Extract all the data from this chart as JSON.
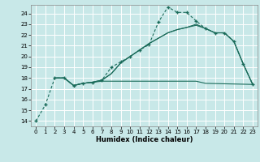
{
  "background_color": "#c8e8e8",
  "grid_color": "#ffffff",
  "line_color": "#1a6b5a",
  "xlabel": "Humidex (Indice chaleur)",
  "xlim": [
    -0.5,
    23.5
  ],
  "ylim": [
    13.5,
    24.8
  ],
  "yticks": [
    14,
    15,
    16,
    17,
    18,
    19,
    20,
    21,
    22,
    23,
    24
  ],
  "xticks": [
    0,
    1,
    2,
    3,
    4,
    5,
    6,
    7,
    8,
    9,
    10,
    11,
    12,
    13,
    14,
    15,
    16,
    17,
    18,
    19,
    20,
    21,
    22,
    23
  ],
  "line1_x": [
    0,
    1,
    2,
    3,
    4,
    5,
    6,
    7,
    8,
    9,
    10,
    11,
    12,
    13,
    14,
    15,
    16,
    17,
    18,
    19,
    20,
    21,
    22,
    23
  ],
  "line1_y": [
    14.0,
    15.5,
    18.0,
    18.0,
    17.3,
    17.5,
    17.6,
    17.8,
    19.0,
    19.5,
    20.0,
    20.6,
    21.1,
    23.2,
    24.6,
    24.1,
    24.1,
    23.3,
    22.6,
    22.2,
    22.2,
    21.4,
    19.3,
    17.4
  ],
  "line2_x": [
    2,
    3,
    4,
    5,
    6,
    7,
    8,
    9,
    10,
    11,
    12,
    13,
    14,
    15,
    16,
    17,
    18,
    19,
    20,
    21,
    22,
    23
  ],
  "line2_y": [
    18.0,
    18.0,
    17.3,
    17.5,
    17.6,
    17.8,
    18.4,
    19.4,
    20.0,
    20.6,
    21.2,
    21.7,
    22.2,
    22.5,
    22.7,
    23.0,
    22.6,
    22.2,
    22.2,
    21.4,
    19.3,
    17.4
  ],
  "line3_x": [
    2,
    3,
    4,
    5,
    6,
    7,
    8,
    9,
    10,
    11,
    12,
    13,
    14,
    15,
    16,
    17,
    18,
    19,
    20,
    21,
    22,
    23
  ],
  "line3_y": [
    18.0,
    18.0,
    17.3,
    17.5,
    17.6,
    17.8,
    18.4,
    19.4,
    20.0,
    20.6,
    21.2,
    21.7,
    22.2,
    22.5,
    22.7,
    22.9,
    22.6,
    22.2,
    22.2,
    21.4,
    19.3,
    17.4
  ],
  "line4_x": [
    2,
    3,
    4,
    5,
    6,
    7,
    8,
    9,
    10,
    11,
    12,
    13,
    14,
    15,
    16,
    17,
    18,
    23
  ],
  "line4_y": [
    18.0,
    18.0,
    17.3,
    17.5,
    17.6,
    17.7,
    17.7,
    17.7,
    17.7,
    17.7,
    17.7,
    17.7,
    17.7,
    17.7,
    17.7,
    17.7,
    17.5,
    17.4
  ]
}
